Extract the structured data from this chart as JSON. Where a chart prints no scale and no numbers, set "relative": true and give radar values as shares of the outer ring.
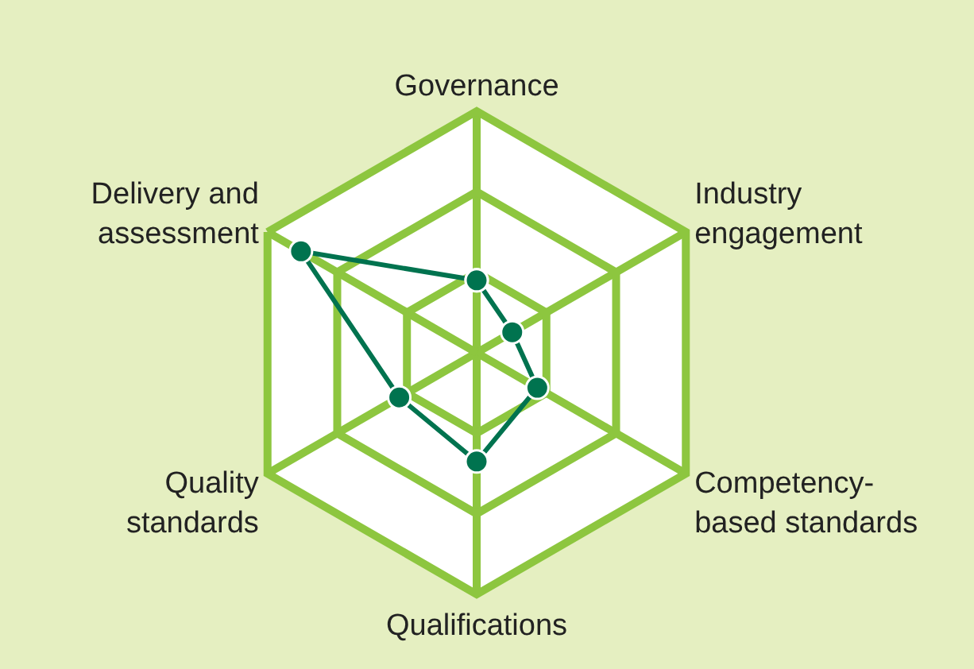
{
  "chart_data": {
    "type": "radar",
    "relative": true,
    "categories": [
      "Governance",
      "Industry\nengagement",
      "Competency-\nbased standards",
      "Qualifications",
      "Quality\nstandards",
      "Delivery and\nassessment"
    ],
    "series": [
      {
        "color": "#00734f",
        "values": [
          0.3,
          0.17,
          0.29,
          0.45,
          0.37,
          0.84
        ]
      }
    ],
    "grid": true,
    "marker": "circle",
    "line_style": "solid",
    "legend": false
  }
}
